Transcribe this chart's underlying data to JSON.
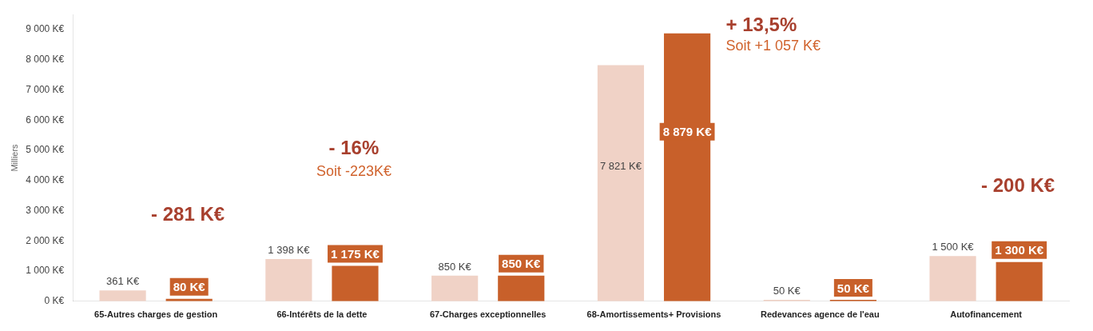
{
  "chart_data": {
    "type": "bar",
    "ylabel": "Milliers",
    "categories": [
      "65-Autres charges de gestion",
      "66-Intérêts de la dette",
      "67-Charges exceptionnelles",
      "68-Amortissements+ Provisions",
      "Redevances agence de l'eau",
      "Autofinancement"
    ],
    "series": [
      {
        "color": "#f0d2c6",
        "values": [
          361,
          1398,
          850,
          7821,
          50,
          1500
        ],
        "value_labels": [
          "361 K€",
          "1 398 K€",
          "850 K€",
          "7 821 K€",
          "50 K€",
          "1 500 K€"
        ]
      },
      {
        "color": "#c8602a",
        "values": [
          80,
          1175,
          850,
          8879,
          50,
          1300
        ],
        "value_labels": [
          "80 K€",
          "1 175 K€",
          "850 K€",
          "8 879 K€",
          "50 K€",
          "1 300 K€"
        ]
      }
    ],
    "ylim": [
      0,
      9500
    ],
    "yticks": [
      {
        "value": 0,
        "label": "0 K€"
      },
      {
        "value": 1000,
        "label": "1 000 K€"
      },
      {
        "value": 2000,
        "label": "2 000 K€"
      },
      {
        "value": 3000,
        "label": "3 000 K€"
      },
      {
        "value": 4000,
        "label": "4 000 K€"
      },
      {
        "value": 5000,
        "label": "5 000 K€"
      },
      {
        "value": 6000,
        "label": "6 000 K€"
      },
      {
        "value": 7000,
        "label": "7 000 K€"
      },
      {
        "value": 8000,
        "label": "8 000 K€"
      },
      {
        "value": 9000,
        "label": "9 000 K€"
      }
    ],
    "grid": false,
    "legend": false,
    "annotations": [
      "- 281 K€",
      "- 16%",
      "Soit -223K€",
      "+ 13,5%",
      "Soit +1 057 K€",
      "- 200 K€"
    ]
  }
}
